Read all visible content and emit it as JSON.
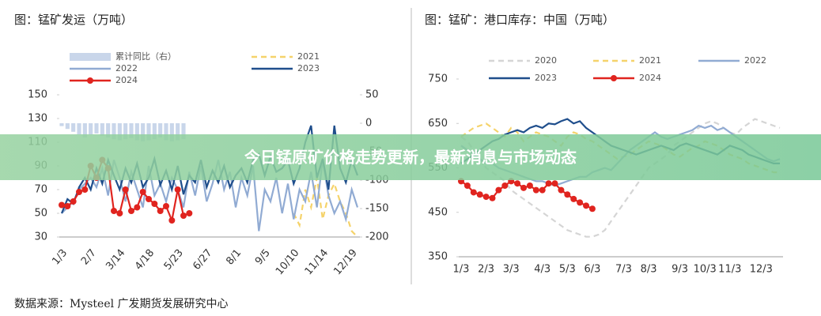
{
  "chart_data": [
    {
      "type": "line",
      "title": "图：锰矿发运（万吨）",
      "categories": [
        "1/3",
        null,
        null,
        null,
        null,
        "2/7",
        null,
        null,
        null,
        null,
        "3/14",
        null,
        null,
        null,
        null,
        "4/18",
        null,
        null,
        null,
        null,
        "5/23",
        null,
        null,
        null,
        null,
        "6/27",
        null,
        null,
        null,
        null,
        "8/1",
        null,
        null,
        null,
        null,
        "9/5",
        null,
        null,
        null,
        null,
        "10/10",
        null,
        null,
        null,
        null,
        "11/14",
        null,
        null,
        null,
        null,
        "12/19",
        null
      ],
      "ylim": [
        30,
        150
      ],
      "yticks": [
        30,
        50,
        70,
        90,
        110,
        130,
        150
      ],
      "y2lim": [
        -200,
        50
      ],
      "y2ticks": [
        -200,
        -150,
        -100,
        -50,
        0,
        50
      ],
      "series": [
        {
          "name": "累计同比（右）",
          "color": "#c9d6ea",
          "kind": "bar",
          "axis": "y2",
          "values": [
            -5,
            -10,
            -15,
            -20,
            -25,
            -20,
            -18,
            -22,
            -25,
            -28,
            -30,
            -28,
            -26,
            -30,
            -32,
            -30,
            -28,
            -25,
            -30,
            -32,
            -30,
            -28,
            null,
            null,
            null,
            null,
            null,
            null,
            null,
            null,
            null,
            null,
            null,
            null,
            null,
            null,
            null,
            null,
            null,
            null,
            null,
            null,
            null,
            null,
            null,
            null,
            null,
            null,
            null,
            null,
            null,
            null
          ]
        },
        {
          "name": "2021",
          "color": "#f5d36b",
          "dash": true,
          "values": [
            null,
            null,
            null,
            null,
            null,
            null,
            null,
            null,
            null,
            null,
            null,
            null,
            null,
            null,
            null,
            null,
            null,
            null,
            null,
            null,
            null,
            null,
            null,
            null,
            null,
            null,
            null,
            null,
            null,
            null,
            null,
            null,
            null,
            null,
            null,
            null,
            null,
            null,
            null,
            null,
            50,
            40,
            70,
            55,
            80,
            45,
            65,
            75,
            60,
            50,
            35,
            30
          ]
        },
        {
          "name": "2022",
          "color": "#91abd3",
          "values": [
            50,
            55,
            60,
            70,
            75,
            80,
            72,
            88,
            65,
            95,
            80,
            60,
            85,
            70,
            55,
            90,
            65,
            75,
            60,
            80,
            70,
            55,
            85,
            65,
            90,
            60,
            75,
            95,
            70,
            85,
            55,
            80,
            65,
            90,
            35,
            70,
            60,
            80,
            50,
            75,
            45,
            70,
            60,
            85,
            55,
            95,
            65,
            50,
            60,
            45,
            70,
            55
          ]
        },
        {
          "name": "2023",
          "color": "#1f4e8c",
          "values": [
            50,
            62,
            58,
            72,
            80,
            70,
            88,
            75,
            95,
            82,
            70,
            88,
            76,
            92,
            72,
            80,
            96,
            74,
            86,
            70,
            90,
            66,
            82,
            76,
            95,
            72,
            86,
            76,
            90,
            72,
            82,
            88,
            76,
            95,
            100,
            82,
            98,
            85,
            88,
            95,
            75,
            88,
            110,
            124,
            80,
            96,
            70,
            124,
            88,
            76,
            95,
            82
          ]
        },
        {
          "name": "2024",
          "color": "#e0241f",
          "markers": true,
          "values": [
            57,
            56,
            60,
            68,
            70,
            90,
            80,
            95,
            88,
            52,
            50,
            70,
            52,
            55,
            68,
            62,
            58,
            52,
            56,
            44,
            70,
            48,
            50,
            null,
            null,
            null,
            null,
            null,
            null,
            null,
            null,
            null,
            null,
            null,
            null,
            null,
            null,
            null,
            null,
            null,
            null,
            null,
            null,
            null,
            null,
            null,
            null,
            null,
            null,
            null,
            null,
            null
          ]
        }
      ]
    },
    {
      "type": "line",
      "title": "图：锰矿：港口库存：中国（万吨）",
      "categories": [
        "1/3",
        null,
        null,
        null,
        "2/3",
        null,
        null,
        null,
        "3/3",
        null,
        null,
        null,
        null,
        "4/3",
        null,
        null,
        null,
        "5/3",
        null,
        null,
        null,
        "6/3",
        null,
        null,
        null,
        null,
        "7/3",
        null,
        null,
        null,
        "8/3",
        null,
        null,
        null,
        null,
        "9/3",
        null,
        null,
        null,
        "10/3",
        null,
        null,
        null,
        "11/3",
        null,
        null,
        null,
        null,
        "12/3",
        null,
        null,
        null
      ],
      "ylim": [
        350,
        750
      ],
      "yticks": [
        350,
        450,
        550,
        650,
        750
      ],
      "series": [
        {
          "name": "2020",
          "color": "#d5d5d5",
          "dash": true,
          "values": [
            620,
            610,
            590,
            570,
            550,
            540,
            530,
            520,
            500,
            490,
            480,
            470,
            460,
            450,
            440,
            430,
            420,
            410,
            405,
            400,
            395,
            395,
            400,
            410,
            430,
            450,
            470,
            490,
            510,
            530,
            550,
            560,
            570,
            580,
            600,
            610,
            620,
            630,
            640,
            650,
            655,
            650,
            640,
            630,
            625,
            640,
            650,
            660,
            655,
            650,
            645,
            640
          ]
        },
        {
          "name": "2021",
          "color": "#f5d36b",
          "dash": true,
          "values": [
            620,
            630,
            640,
            645,
            650,
            640,
            630,
            620,
            640,
            630,
            610,
            620,
            630,
            625,
            620,
            610,
            600,
            620,
            630,
            625,
            615,
            610,
            600,
            590,
            580,
            570,
            575,
            580,
            590,
            600,
            610,
            605,
            600,
            590,
            580,
            575,
            585,
            595,
            600,
            610,
            605,
            600,
            590,
            580,
            575,
            570,
            560,
            555,
            550,
            545,
            540,
            540
          ]
        },
        {
          "name": "2022",
          "color": "#91abd3",
          "values": [
            600,
            590,
            580,
            570,
            560,
            560,
            550,
            545,
            540,
            535,
            530,
            525,
            520,
            520,
            515,
            510,
            515,
            520,
            525,
            530,
            530,
            540,
            545,
            550,
            545,
            560,
            575,
            590,
            600,
            610,
            620,
            630,
            620,
            615,
            620,
            625,
            630,
            635,
            645,
            640,
            645,
            635,
            640,
            630,
            620,
            610,
            600,
            590,
            580,
            570,
            565,
            570
          ]
        },
        {
          "name": "2023",
          "color": "#1f4e8c",
          "values": [
            560,
            570,
            580,
            590,
            600,
            610,
            615,
            625,
            630,
            635,
            630,
            640,
            645,
            640,
            650,
            648,
            655,
            660,
            650,
            655,
            640,
            630,
            620,
            610,
            600,
            595,
            590,
            585,
            580,
            585,
            590,
            595,
            600,
            595,
            590,
            600,
            605,
            600,
            595,
            590,
            585,
            580,
            590,
            600,
            595,
            590,
            580,
            575,
            570,
            565,
            560,
            560
          ]
        },
        {
          "name": "2024",
          "color": "#e0241f",
          "markers": true,
          "values": [
            520,
            510,
            495,
            490,
            485,
            482,
            500,
            510,
            520,
            515,
            505,
            510,
            500,
            500,
            515,
            515,
            500,
            490,
            480,
            472,
            465,
            458,
            null,
            null,
            null,
            null,
            null,
            null,
            null,
            null,
            null,
            null,
            null,
            null,
            null,
            null,
            null,
            null,
            null,
            null,
            null,
            null,
            null,
            null,
            null,
            null,
            null,
            null,
            null,
            null,
            null,
            null
          ]
        }
      ]
    }
  ],
  "banner": "今日锰原矿价格走势更新，最新消息与市场动态",
  "source": "数据来源：Mysteel  广发期货发展研究中心"
}
